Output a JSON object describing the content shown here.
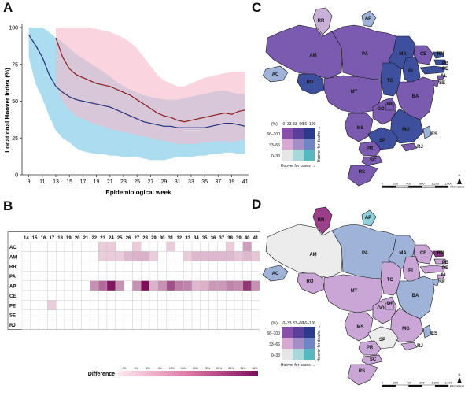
{
  "panels": {
    "a": "A",
    "b": "B",
    "c": "C",
    "d": "D"
  },
  "colors": {
    "red_line": "#8b1a1a",
    "blue_line": "#1f2f7a",
    "red_band": "#f6b9c9",
    "blue_band": "#8fd0ea",
    "heat_low": "#fde9ee",
    "heat_high": "#7b0f5c"
  },
  "chart_data": [
    {
      "type": "line",
      "ylabel": "Locational Hoover Index (%)",
      "xlabel": "Epidemiological week",
      "ylim": [
        0,
        100
      ],
      "xlim": [
        8,
        41.5
      ],
      "yticks": [
        0,
        25,
        50,
        75,
        100
      ],
      "xticks": [
        9,
        11,
        13,
        15,
        17,
        19,
        21,
        23,
        25,
        27,
        29,
        31,
        33,
        35,
        37,
        39,
        41
      ],
      "grid": false,
      "series": [
        {
          "color": "#1f2f7a",
          "x": [
            9,
            10,
            11,
            12,
            13,
            14,
            15,
            16,
            17,
            18,
            19,
            20,
            21,
            22,
            23,
            24,
            25,
            26,
            27,
            28,
            29,
            30,
            31,
            32,
            33,
            34,
            35,
            36,
            37,
            38,
            39,
            40,
            41
          ],
          "values": [
            95,
            88,
            80,
            68,
            60,
            56,
            53,
            51,
            50,
            49,
            48,
            47,
            46,
            44,
            42,
            40,
            38,
            36,
            35,
            34,
            33,
            33,
            32,
            32,
            32,
            32,
            32,
            33,
            34,
            35,
            35,
            34,
            33
          ],
          "band_low": [
            80,
            62,
            52,
            40,
            30,
            25,
            22,
            18,
            16,
            15,
            14,
            14,
            13,
            13,
            12,
            12,
            12,
            11,
            10,
            10,
            10,
            11,
            12,
            12,
            12,
            13,
            13,
            14,
            14,
            15,
            15,
            14,
            14
          ],
          "band_high": [
            100,
            100,
            100,
            97,
            93,
            90,
            86,
            82,
            79,
            76,
            73,
            70,
            67,
            63,
            60,
            58,
            56,
            54,
            53,
            52,
            51,
            51,
            51,
            52,
            53,
            54,
            55,
            56,
            57,
            57,
            56,
            55,
            55
          ]
        },
        {
          "color": "#8b1a1a",
          "x": [
            13,
            14,
            15,
            16,
            17,
            18,
            19,
            20,
            21,
            22,
            23,
            24,
            25,
            26,
            27,
            28,
            29,
            30,
            31,
            32,
            33,
            34,
            35,
            36,
            37,
            38,
            39,
            40,
            41
          ],
          "values": [
            93,
            80,
            72,
            68,
            66,
            64,
            62,
            61,
            60,
            58,
            56,
            54,
            51,
            48,
            45,
            42,
            40,
            39,
            37,
            36,
            37,
            38,
            39,
            40,
            41,
            42,
            41,
            43,
            44
          ],
          "band_low": [
            60,
            50,
            44,
            40,
            38,
            36,
            34,
            33,
            31,
            30,
            29,
            28,
            27,
            26,
            25,
            24,
            23,
            22,
            21,
            21,
            21,
            21,
            22,
            22,
            23,
            23,
            22,
            23,
            24
          ],
          "band_high": [
            100,
            100,
            100,
            100,
            100,
            100,
            99,
            98,
            97,
            95,
            93,
            90,
            86,
            80,
            74,
            68,
            64,
            62,
            60,
            60,
            62,
            64,
            66,
            67,
            68,
            69,
            70,
            70,
            70
          ]
        }
      ]
    },
    {
      "type": "heatmap",
      "legend_title": "Difference",
      "legend_ticks": [
        "0%",
        "3%",
        "6%",
        "9%",
        "13%",
        "16%",
        "19%",
        "22%",
        "25%",
        "28%",
        "31%",
        "34%"
      ],
      "columns": [
        "14",
        "15",
        "16",
        "17",
        "18",
        "19",
        "20",
        "21",
        "22",
        "23",
        "24",
        "25",
        "26",
        "27",
        "28",
        "29",
        "30",
        "31",
        "32",
        "33",
        "34",
        "35",
        "36",
        "37",
        "38",
        "39",
        "40",
        "41"
      ],
      "rows": [
        "AC",
        "AM",
        "RR",
        "PA",
        "AP",
        "CE",
        "PE",
        "SE",
        "RJ"
      ],
      "values": [
        [
          0,
          0,
          0,
          0,
          0,
          0,
          0,
          0,
          0,
          5,
          5,
          0,
          0,
          5,
          0,
          0,
          0,
          5,
          0,
          0,
          0,
          0,
          0,
          0,
          5,
          0,
          12,
          0
        ],
        [
          0,
          0,
          0,
          0,
          0,
          0,
          0,
          0,
          0,
          5,
          5,
          5,
          8,
          9,
          9,
          5,
          0,
          0,
          0,
          5,
          8,
          8,
          8,
          8,
          8,
          6,
          8,
          6
        ],
        [
          0,
          0,
          0,
          0,
          0,
          0,
          0,
          0,
          0,
          0,
          0,
          0,
          0,
          0,
          0,
          0,
          0,
          0,
          0,
          0,
          0,
          0,
          0,
          0,
          0,
          0,
          0,
          0
        ],
        [
          0,
          0,
          0,
          0,
          0,
          0,
          0,
          0,
          0,
          0,
          0,
          0,
          0,
          0,
          0,
          0,
          0,
          0,
          0,
          0,
          0,
          0,
          0,
          0,
          0,
          0,
          0,
          0
        ],
        [
          0,
          0,
          0,
          0,
          0,
          0,
          0,
          0,
          14,
          20,
          33,
          14,
          0,
          14,
          34,
          9,
          14,
          24,
          17,
          16,
          8,
          9,
          13,
          13,
          16,
          15,
          28,
          14
        ],
        [
          0,
          0,
          0,
          0,
          0,
          0,
          0,
          0,
          0,
          0,
          0,
          0,
          0,
          0,
          0,
          0,
          0,
          0,
          0,
          0,
          0,
          0,
          0,
          0,
          0,
          0,
          0,
          0
        ],
        [
          0,
          0,
          0,
          5,
          0,
          0,
          0,
          0,
          0,
          0,
          0,
          0,
          0,
          0,
          0,
          0,
          0,
          0,
          0,
          0,
          0,
          0,
          0,
          0,
          0,
          0,
          0,
          0
        ],
        [
          0,
          0,
          0,
          0,
          0,
          0,
          0,
          0,
          0,
          0,
          0,
          0,
          0,
          0,
          0,
          0,
          0,
          0,
          0,
          0,
          0,
          0,
          0,
          0,
          0,
          0,
          0,
          0
        ],
        [
          0,
          0,
          0,
          0,
          0,
          0,
          0,
          0,
          0,
          0,
          0,
          0,
          0,
          0,
          0,
          0,
          0,
          0,
          0,
          0,
          0,
          0,
          0,
          0,
          0,
          0,
          0,
          0
        ]
      ]
    }
  ],
  "maps": {
    "states": [
      "RR",
      "AP",
      "AM",
      "PA",
      "MA",
      "CE",
      "RN",
      "PB",
      "PE",
      "AL",
      "SE",
      "PI",
      "TO",
      "BA",
      "AC",
      "RO",
      "MT",
      "GO",
      "DF",
      "MG",
      "ES",
      "MS",
      "SP",
      "RJ",
      "PR",
      "SC",
      "RS"
    ],
    "legend": {
      "cols": [
        "0–33",
        "33–66",
        "66–100"
      ],
      "rows": [
        "66–100",
        "33–66",
        "0–33"
      ],
      "unit": "(%)",
      "xlabel": "Hoover for cases",
      "ylabel": "Hoover for deaths"
    },
    "scale_ticks": [
      "0",
      "200",
      "400",
      "800",
      "1,200",
      "1,600"
    ],
    "scale_unit": "Kilometers",
    "north": "N"
  }
}
